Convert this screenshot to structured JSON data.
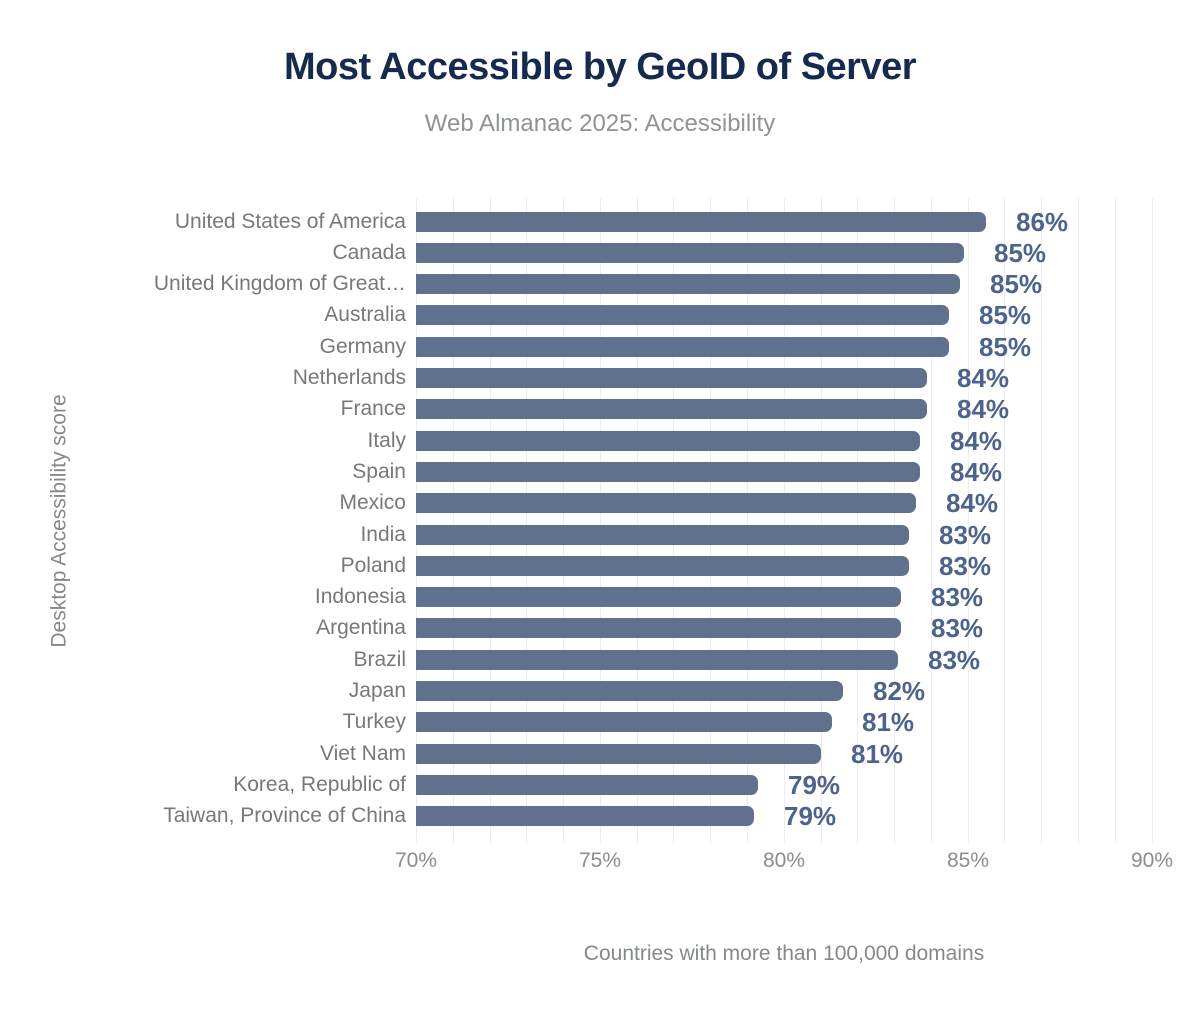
{
  "chart": {
    "title": "Most Accessible by GeoID of Server",
    "subtitle": "Web Almanac 2025: Accessibility",
    "y_axis_label": "Desktop Accessibility score",
    "x_axis_label": "Countries with more than 100,000 domains"
  },
  "chart_data": {
    "type": "bar",
    "orientation": "horizontal",
    "title": "Most Accessible by GeoID of Server",
    "subtitle": "Web Almanac 2025: Accessibility",
    "xlabel": "Countries with more than 100,000 domains",
    "ylabel": "Desktop Accessibility score",
    "categories": [
      "United States of America",
      "Canada",
      "United Kingdom of Great…",
      "Australia",
      "Germany",
      "Netherlands",
      "France",
      "Italy",
      "Spain",
      "Mexico",
      "India",
      "Poland",
      "Indonesia",
      "Argentina",
      "Brazil",
      "Japan",
      "Turkey",
      "Viet Nam",
      "Korea, Republic of",
      "Taiwan, Province of China"
    ],
    "values": [
      85.5,
      84.9,
      84.8,
      84.5,
      84.5,
      83.9,
      83.9,
      83.7,
      83.7,
      83.6,
      83.4,
      83.4,
      83.2,
      83.2,
      83.1,
      81.6,
      81.3,
      81.0,
      79.3,
      79.2
    ],
    "value_labels": [
      "86%",
      "85%",
      "85%",
      "85%",
      "85%",
      "84%",
      "84%",
      "84%",
      "84%",
      "84%",
      "83%",
      "83%",
      "83%",
      "83%",
      "83%",
      "82%",
      "81%",
      "81%",
      "79%",
      "79%"
    ],
    "xlim": [
      70,
      90
    ],
    "x_ticks": [
      "70%",
      "75%",
      "80%",
      "85%",
      "90%"
    ],
    "x_tick_values": [
      70,
      75,
      80,
      85,
      90
    ],
    "grid": "vertical minor gridlines every 1%",
    "legend": "none",
    "colors": {
      "bar": "#5f718d",
      "value_label": "#4d628c",
      "title": "#152a4e",
      "subtitle": "#8f9297",
      "category_label": "#76787b",
      "tick_label": "#8a8d92",
      "gridline": "#ececf2",
      "background": "#ffffff"
    }
  }
}
